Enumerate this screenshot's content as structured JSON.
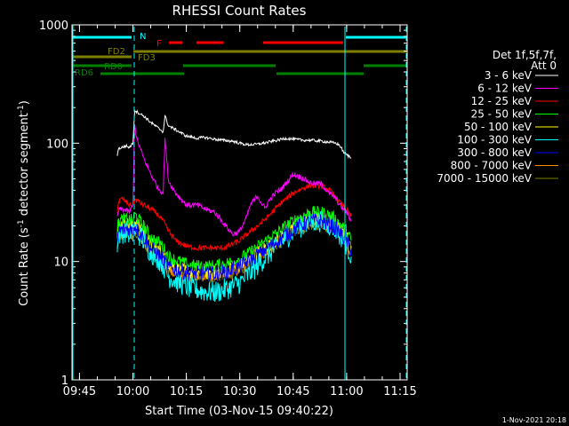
{
  "chart_data": {
    "type": "line",
    "title": "RHESSI Count Rates",
    "xlabel": "Start Time (03-Nov-15 09:40:22)",
    "ylabel_main": "Count Rate (s",
    "ylabel_sup1": "-1",
    "ylabel_mid": " detector segment",
    "ylabel_sup2": "-1",
    "ylabel_end": ")",
    "yscale": "log",
    "ylim": [
      1,
      1000
    ],
    "xlim_min_after_0940": [
      2.9,
      97.0
    ],
    "x_ticks": [
      {
        "t": 5,
        "label": "09:45"
      },
      {
        "t": 20,
        "label": "10:00"
      },
      {
        "t": 35,
        "label": "10:15"
      },
      {
        "t": 50,
        "label": "10:30"
      },
      {
        "t": 65,
        "label": "10:45"
      },
      {
        "t": 80,
        "label": "11:00"
      },
      {
        "t": 95,
        "label": "11:15"
      }
    ],
    "y_ticks": [
      {
        "v": 1,
        "label": "1"
      },
      {
        "v": 10,
        "label": "10"
      },
      {
        "v": 100,
        "label": "100"
      },
      {
        "v": 1000,
        "label": "1000"
      }
    ],
    "legend": {
      "header1": "Det 1f,5f,7f,",
      "header2": "Att 0",
      "placement": "right"
    },
    "series": [
      {
        "name": "3 - 6 keV",
        "color": "#ffffff",
        "x": [
          15.6,
          16,
          17,
          18,
          19,
          20,
          20.5,
          21,
          23,
          25,
          27,
          28.5,
          29,
          30,
          32,
          35,
          38,
          40,
          43,
          45,
          48,
          50,
          52,
          55,
          58,
          60,
          63,
          65,
          68,
          70,
          73,
          75,
          77,
          78,
          78.6,
          79,
          80,
          81.3
        ],
        "y": [
          80,
          90,
          92,
          95,
          92,
          100,
          190,
          185,
          170,
          150,
          135,
          125,
          170,
          140,
          130,
          115,
          110,
          112,
          108,
          106,
          104,
          100,
          97,
          98,
          102,
          105,
          110,
          108,
          106,
          106,
          104,
          102,
          100,
          96,
          90,
          85,
          80,
          75
        ]
      },
      {
        "name": "6 - 12 keV",
        "color": "#ff00ff",
        "x": [
          15.6,
          16,
          17,
          18,
          19,
          20,
          20.5,
          21,
          23,
          25,
          27,
          28.5,
          29,
          30,
          32,
          35,
          38,
          40,
          43,
          45,
          48,
          50,
          52,
          53,
          55,
          57,
          58,
          60,
          62,
          65,
          68,
          70,
          73,
          75,
          77,
          78,
          80,
          81.3
        ],
        "y": [
          24,
          27,
          28,
          27,
          26,
          30,
          150,
          110,
          75,
          55,
          42,
          38,
          110,
          48,
          38,
          30,
          30,
          28,
          26,
          22,
          17,
          18,
          24,
          30,
          36,
          28,
          32,
          38,
          42,
          55,
          50,
          46,
          45,
          38,
          34,
          30,
          26,
          22
        ]
      },
      {
        "name": "12 - 25 keV",
        "color": "#ff0000",
        "x": [
          15.6,
          16,
          17,
          18,
          19,
          20,
          20.5,
          21,
          23,
          25,
          27,
          28.5,
          30,
          32,
          35,
          38,
          40,
          43,
          45,
          48,
          50,
          52,
          55,
          58,
          60,
          62,
          65,
          68,
          70,
          72,
          74,
          76,
          78,
          80,
          81.3
        ],
        "y": [
          27,
          32,
          34,
          32,
          30,
          30,
          33,
          33,
          30,
          28,
          25,
          22,
          18,
          15,
          13.5,
          13,
          13,
          13,
          13,
          14,
          15,
          17,
          20,
          24,
          28,
          32,
          38,
          42,
          44,
          44,
          42,
          38,
          32,
          27,
          24
        ]
      },
      {
        "name": "25 - 50 keV",
        "color": "#00ff00",
        "x": [
          15.6,
          16,
          18,
          20,
          20.5,
          21,
          23,
          25,
          28,
          30,
          33,
          36,
          40,
          43,
          46,
          50,
          53,
          56,
          60,
          63,
          66,
          70,
          73,
          76,
          78,
          80,
          81.3
        ],
        "y": [
          18,
          22,
          23,
          22,
          25,
          24,
          20,
          16,
          14,
          11,
          10,
          9.3,
          9.1,
          9.2,
          9.6,
          10.5,
          12,
          14,
          17,
          20,
          23,
          26,
          26,
          24,
          21,
          18,
          15
        ]
      },
      {
        "name": "50 - 100 keV",
        "color": "#ffff00",
        "x": [
          15.6,
          16,
          18,
          20,
          20.5,
          21,
          23,
          25,
          28,
          30,
          33,
          36,
          40,
          43,
          46,
          50,
          53,
          56,
          60,
          63,
          66,
          70,
          73,
          76,
          78,
          80,
          81.3
        ],
        "y": [
          16,
          20,
          21,
          20,
          22,
          21,
          18,
          14,
          12,
          9.6,
          8.6,
          8.1,
          8.0,
          8.1,
          8.4,
          9.2,
          10.5,
          12.5,
          15,
          18,
          20.5,
          23,
          23,
          21,
          19,
          16,
          13.5
        ]
      },
      {
        "name": "100 - 300 keV",
        "color": "#00ffff",
        "x": [
          15.6,
          16,
          18,
          20,
          20.5,
          21,
          23,
          25,
          28,
          30,
          33,
          36,
          40,
          43,
          46,
          50,
          53,
          56,
          60,
          63,
          66,
          70,
          73,
          76,
          78,
          80,
          81.3
        ],
        "y": [
          14,
          17,
          18,
          17,
          19,
          18,
          15,
          12,
          10,
          7.5,
          6.6,
          6.0,
          5.6,
          5.5,
          5.8,
          6.6,
          8.0,
          10,
          13,
          16,
          19,
          22,
          22,
          20,
          17,
          14,
          11
        ]
      },
      {
        "name": "300 - 800 keV",
        "color": "#0000ff",
        "x": [
          15.6,
          16,
          18,
          20,
          20.5,
          21,
          23,
          25,
          28,
          30,
          33,
          36,
          40,
          43,
          46,
          50,
          53,
          56,
          60,
          63,
          66,
          70,
          73,
          76,
          78,
          80,
          81.3
        ],
        "y": [
          15,
          18,
          19,
          18,
          20,
          19,
          16,
          13,
          11,
          9.0,
          8.3,
          8.0,
          7.9,
          7.9,
          8.2,
          9.0,
          10.2,
          12,
          14.5,
          17,
          19.5,
          22,
          22,
          20,
          17.5,
          15,
          12.5
        ]
      },
      {
        "name": "800 - 7000 keV",
        "color": "#ff8c00",
        "x": [
          15.6,
          16,
          18,
          20,
          20.5,
          21,
          23,
          25,
          28,
          30,
          33,
          36,
          40,
          43,
          46,
          50,
          53,
          56,
          60,
          63,
          66,
          70,
          73,
          76,
          78,
          80,
          81.3
        ],
        "y": [
          14,
          17,
          17.5,
          17,
          18.5,
          18,
          15,
          12,
          10.5,
          8.6,
          8.0,
          7.7,
          7.6,
          7.6,
          7.9,
          8.6,
          9.8,
          11.5,
          14,
          16.5,
          19,
          21,
          21,
          19.5,
          17,
          14.5,
          12
        ]
      },
      {
        "name": "7000 - 15000 keV",
        "color": "#808000",
        "x": [
          15.6,
          16,
          18,
          20,
          20.5,
          21,
          23,
          25,
          28,
          30,
          33,
          36,
          40,
          43,
          46,
          50,
          53,
          56,
          60,
          63,
          66,
          70,
          73,
          76,
          78,
          80,
          81.3
        ],
        "y": [
          13,
          16,
          17,
          16,
          17.5,
          17,
          14.5,
          11.5,
          10,
          8.3,
          7.7,
          7.4,
          7.3,
          7.3,
          7.6,
          8.3,
          9.4,
          11,
          13.5,
          16,
          18.5,
          20,
          20,
          19,
          16.5,
          14,
          11.5
        ]
      }
    ],
    "flag_labels": [
      {
        "text": "N",
        "color": "#00ffff"
      },
      {
        "text": "F",
        "color": "#ff0000"
      },
      {
        "text": "FD2",
        "color": "#808000"
      },
      {
        "text": "FD3",
        "color": "#808000"
      },
      {
        "text": "RD0",
        "color": "#008000"
      },
      {
        "text": "RD6",
        "color": "#008000"
      }
    ]
  },
  "footer": {
    "date_stamp": "1-Nov-2021 20:18"
  }
}
